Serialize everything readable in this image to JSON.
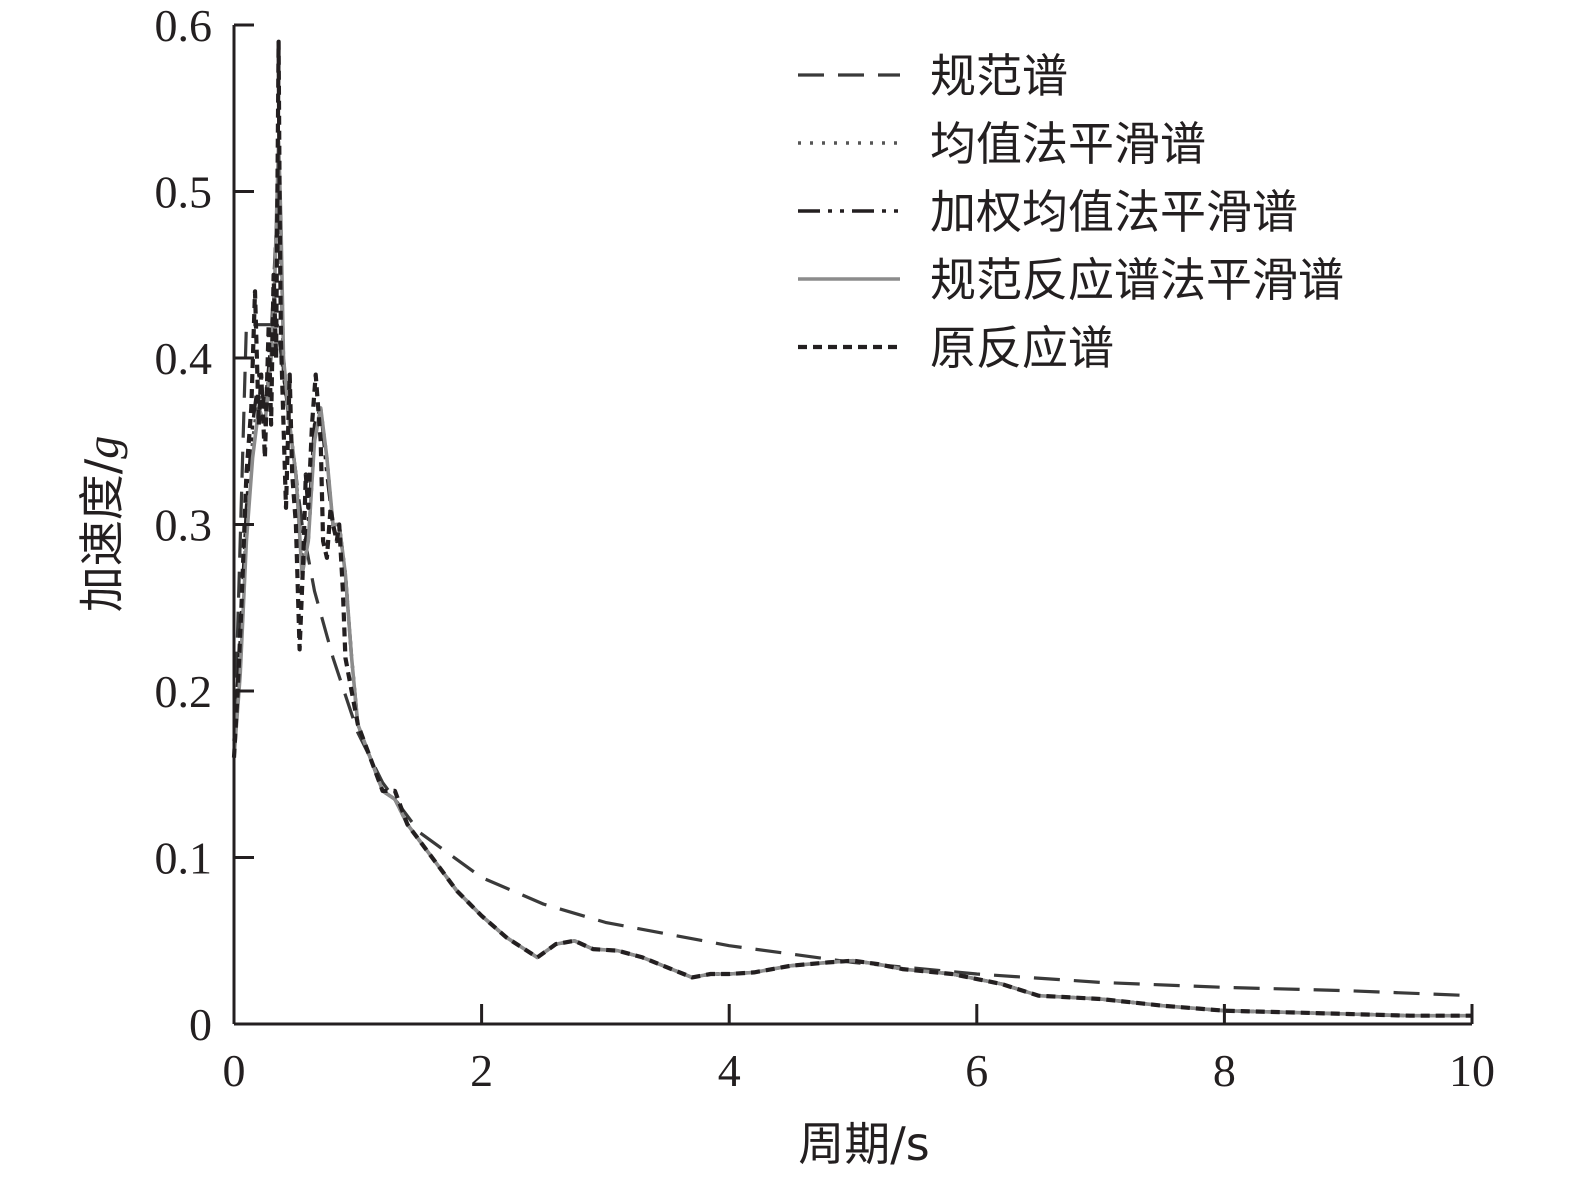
{
  "chart_data": {
    "type": "line",
    "xlabel": "周期/s",
    "ylabel_main": "加速度/",
    "ylabel_unit": "g",
    "xlim": [
      0,
      10
    ],
    "ylim": [
      0,
      0.6
    ],
    "xticks": [
      0,
      2,
      4,
      6,
      8,
      10
    ],
    "xtick_labels": [
      "0",
      "2",
      "4",
      "6",
      "8",
      "10"
    ],
    "yticks": [
      0,
      0.1,
      0.2,
      0.3,
      0.4,
      0.5,
      0.6
    ],
    "ytick_labels": [
      "0",
      "0.1",
      "0.2",
      "0.3",
      "0.4",
      "0.5",
      "0.6"
    ],
    "grid": false,
    "legend_position": "top-right",
    "series": [
      {
        "name": "规范谱",
        "style": "dashed",
        "color": "#3a3a3a",
        "x": [
          0,
          0.1,
          0.2,
          0.35,
          0.45,
          0.55,
          0.65,
          0.8,
          1.0,
          1.2,
          1.5,
          2.0,
          2.5,
          3.0,
          4.0,
          5.0,
          6.0,
          7.0,
          8.0,
          9.0,
          10.0
        ],
        "y": [
          0.16,
          0.42,
          0.42,
          0.42,
          0.36,
          0.3,
          0.26,
          0.22,
          0.175,
          0.145,
          0.115,
          0.088,
          0.072,
          0.061,
          0.047,
          0.037,
          0.03,
          0.025,
          0.022,
          0.02,
          0.017
        ]
      },
      {
        "name": "均值法平滑谱",
        "style": "dotted",
        "color": "#555555",
        "x": [
          0,
          0.05,
          0.1,
          0.15,
          0.2,
          0.25,
          0.3,
          0.33,
          0.36,
          0.38,
          0.4,
          0.45,
          0.5,
          0.55,
          0.6,
          0.65,
          0.7,
          0.75,
          0.8,
          0.85,
          0.9,
          0.95,
          1.0,
          1.1,
          1.2,
          1.3,
          1.4,
          1.6,
          1.8,
          2.0,
          2.2,
          2.45,
          2.6,
          2.75,
          2.9,
          3.1,
          3.3,
          3.5,
          3.7,
          3.85,
          4.0,
          4.2,
          4.5,
          4.8,
          5.0,
          5.2,
          5.4,
          5.8,
          6.2,
          6.5,
          7.0,
          7.5,
          8.0,
          8.5,
          9.0,
          9.5,
          10.0
        ],
        "y": [
          0.16,
          0.22,
          0.3,
          0.35,
          0.38,
          0.37,
          0.4,
          0.45,
          0.52,
          0.47,
          0.4,
          0.36,
          0.33,
          0.28,
          0.29,
          0.35,
          0.37,
          0.34,
          0.3,
          0.3,
          0.27,
          0.22,
          0.18,
          0.16,
          0.14,
          0.135,
          0.12,
          0.1,
          0.08,
          0.065,
          0.052,
          0.04,
          0.048,
          0.05,
          0.045,
          0.044,
          0.04,
          0.034,
          0.028,
          0.03,
          0.03,
          0.031,
          0.035,
          0.037,
          0.038,
          0.036,
          0.033,
          0.03,
          0.024,
          0.017,
          0.015,
          0.011,
          0.008,
          0.007,
          0.006,
          0.005,
          0.005
        ]
      },
      {
        "name": "加权均值法平滑谱",
        "style": "dashdotdot",
        "color": "#231f20",
        "x": [
          0,
          0.05,
          0.1,
          0.15,
          0.2,
          0.25,
          0.3,
          0.33,
          0.36,
          0.38,
          0.4,
          0.45,
          0.5,
          0.55,
          0.6,
          0.65,
          0.7,
          0.75,
          0.8,
          0.85,
          0.9,
          0.95,
          1.0,
          1.1,
          1.2,
          1.3,
          1.4,
          1.6,
          1.8,
          2.0,
          2.2,
          2.45,
          2.6,
          2.75,
          2.9,
          3.1,
          3.3,
          3.5,
          3.7,
          3.85,
          4.0,
          4.2,
          4.5,
          4.8,
          5.0,
          5.2,
          5.4,
          5.8,
          6.2,
          6.5,
          7.0,
          7.5,
          8.0,
          8.5,
          9.0,
          9.5,
          10.0
        ],
        "y": [
          0.17,
          0.23,
          0.31,
          0.36,
          0.39,
          0.37,
          0.41,
          0.46,
          0.51,
          0.46,
          0.39,
          0.36,
          0.33,
          0.28,
          0.3,
          0.36,
          0.37,
          0.33,
          0.3,
          0.3,
          0.27,
          0.22,
          0.18,
          0.16,
          0.14,
          0.135,
          0.12,
          0.1,
          0.08,
          0.065,
          0.052,
          0.04,
          0.048,
          0.05,
          0.045,
          0.044,
          0.04,
          0.034,
          0.028,
          0.03,
          0.03,
          0.031,
          0.035,
          0.037,
          0.038,
          0.036,
          0.033,
          0.03,
          0.024,
          0.017,
          0.015,
          0.011,
          0.008,
          0.007,
          0.006,
          0.005,
          0.005
        ]
      },
      {
        "name": "规范反应谱法平滑谱",
        "style": "solid",
        "color": "#8c8c8c",
        "x": [
          0,
          0.05,
          0.1,
          0.15,
          0.2,
          0.25,
          0.3,
          0.33,
          0.36,
          0.38,
          0.4,
          0.45,
          0.5,
          0.55,
          0.6,
          0.65,
          0.7,
          0.75,
          0.8,
          0.85,
          0.9,
          0.95,
          1.0,
          1.1,
          1.2,
          1.3,
          1.4,
          1.6,
          1.8,
          2.0,
          2.2,
          2.45,
          2.6,
          2.75,
          2.9,
          3.1,
          3.3,
          3.5,
          3.7,
          3.85,
          4.0,
          4.2,
          4.5,
          4.8,
          5.0,
          5.2,
          5.4,
          5.8,
          6.2,
          6.5,
          7.0,
          7.5,
          8.0,
          8.5,
          9.0,
          9.5,
          10.0
        ],
        "y": [
          0.16,
          0.21,
          0.29,
          0.34,
          0.37,
          0.36,
          0.4,
          0.45,
          0.53,
          0.48,
          0.4,
          0.36,
          0.33,
          0.27,
          0.29,
          0.35,
          0.37,
          0.34,
          0.3,
          0.3,
          0.27,
          0.22,
          0.18,
          0.16,
          0.14,
          0.135,
          0.12,
          0.1,
          0.08,
          0.065,
          0.052,
          0.04,
          0.048,
          0.05,
          0.045,
          0.044,
          0.04,
          0.034,
          0.028,
          0.03,
          0.03,
          0.031,
          0.035,
          0.037,
          0.038,
          0.036,
          0.033,
          0.03,
          0.024,
          0.017,
          0.015,
          0.011,
          0.008,
          0.007,
          0.006,
          0.005,
          0.005
        ]
      },
      {
        "name": "原反应谱",
        "style": "short-dotted",
        "color": "#231f20",
        "x": [
          0,
          0.03,
          0.06,
          0.1,
          0.14,
          0.17,
          0.2,
          0.22,
          0.25,
          0.28,
          0.3,
          0.32,
          0.34,
          0.36,
          0.37,
          0.38,
          0.4,
          0.42,
          0.45,
          0.47,
          0.5,
          0.53,
          0.56,
          0.58,
          0.6,
          0.63,
          0.66,
          0.7,
          0.72,
          0.75,
          0.78,
          0.8,
          0.83,
          0.85,
          0.88,
          0.9,
          0.95,
          1.0,
          1.1,
          1.2,
          1.3,
          1.4,
          1.6,
          1.8,
          2.0,
          2.2,
          2.45,
          2.6,
          2.75,
          2.9,
          3.1,
          3.3,
          3.5,
          3.7,
          3.85,
          4.0,
          4.2,
          4.5,
          4.8,
          5.0,
          5.2,
          5.4,
          5.8,
          6.2,
          6.5,
          7.0,
          7.5,
          8.0,
          8.5,
          9.0,
          9.5,
          10.0
        ],
        "y": [
          0.16,
          0.2,
          0.25,
          0.33,
          0.37,
          0.44,
          0.36,
          0.39,
          0.34,
          0.42,
          0.36,
          0.45,
          0.4,
          0.59,
          0.48,
          0.41,
          0.36,
          0.31,
          0.39,
          0.33,
          0.3,
          0.225,
          0.28,
          0.33,
          0.31,
          0.36,
          0.39,
          0.35,
          0.29,
          0.28,
          0.31,
          0.3,
          0.29,
          0.3,
          0.26,
          0.22,
          0.2,
          0.18,
          0.16,
          0.14,
          0.14,
          0.12,
          0.1,
          0.08,
          0.065,
          0.052,
          0.04,
          0.048,
          0.05,
          0.045,
          0.044,
          0.04,
          0.034,
          0.028,
          0.03,
          0.03,
          0.031,
          0.035,
          0.037,
          0.038,
          0.036,
          0.033,
          0.03,
          0.024,
          0.017,
          0.015,
          0.011,
          0.008,
          0.007,
          0.006,
          0.005,
          0.005
        ]
      }
    ]
  }
}
